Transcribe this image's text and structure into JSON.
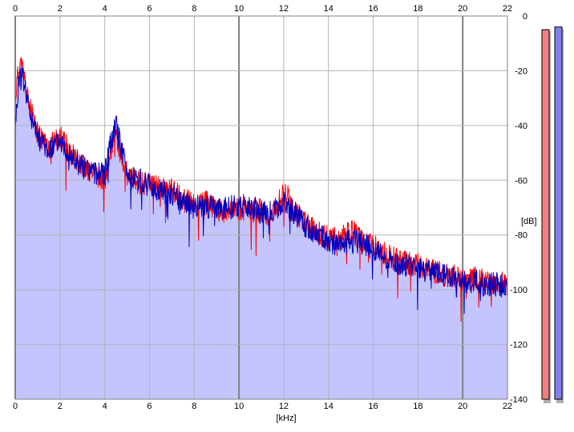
{
  "chart_data": {
    "type": "area",
    "xlabel": "[kHz]",
    "ylabel": "[dB]",
    "xlim": [
      0,
      22
    ],
    "ylim": [
      -140,
      0
    ],
    "x_ticks": [
      "0",
      "2",
      "4",
      "6",
      "8",
      "10",
      "12",
      "14",
      "16",
      "18",
      "20",
      "22"
    ],
    "y_ticks": [
      "0",
      "-20",
      "-40",
      "-60",
      "-80",
      "-100",
      "-120",
      "-140"
    ],
    "grid": true,
    "colors": {
      "fill": "#c4c4ff",
      "grid": "#b4b4b4",
      "grid_major": "#808080",
      "meter_left": "#f08080",
      "meter_right": "#8080f0"
    },
    "series": [
      {
        "color": "#ff0000",
        "x": [
          0.0,
          0.2,
          0.4,
          0.6,
          0.8,
          1.0,
          1.5,
          2.0,
          2.5,
          3.0,
          3.5,
          4.0,
          4.3,
          4.5,
          4.8,
          5.0,
          5.5,
          6.0,
          6.5,
          7.0,
          7.5,
          8.0,
          8.5,
          9.0,
          9.5,
          10.0,
          10.5,
          11.0,
          11.5,
          12.0,
          12.5,
          13.0,
          13.5,
          14.0,
          14.5,
          15.0,
          15.5,
          16.0,
          16.5,
          17.0,
          17.5,
          18.0,
          18.5,
          19.0,
          19.5,
          20.0,
          20.5,
          21.0,
          21.5,
          22.0
        ],
        "y": [
          -30,
          -16,
          -22,
          -32,
          -38,
          -43,
          -48,
          -44,
          -50,
          -54,
          -58,
          -60,
          -48,
          -44,
          -53,
          -58,
          -61,
          -61,
          -63,
          -63,
          -67,
          -69,
          -68,
          -71,
          -71,
          -70,
          -71,
          -71,
          -73,
          -63,
          -71,
          -76,
          -79,
          -81,
          -82,
          -78,
          -82,
          -84,
          -87,
          -89,
          -90,
          -91,
          -93,
          -94,
          -95,
          -96,
          -96,
          -97,
          -97,
          -98
        ]
      },
      {
        "color": "#0000c0",
        "x": [
          0.0,
          0.2,
          0.4,
          0.6,
          0.8,
          1.0,
          1.5,
          2.0,
          2.5,
          3.0,
          3.5,
          4.0,
          4.3,
          4.5,
          4.8,
          5.0,
          5.5,
          6.0,
          6.5,
          7.0,
          7.5,
          8.0,
          8.5,
          9.0,
          9.5,
          10.0,
          10.5,
          11.0,
          11.5,
          12.0,
          12.5,
          13.0,
          13.5,
          14.0,
          14.5,
          15.0,
          15.5,
          16.0,
          16.5,
          17.0,
          17.5,
          18.0,
          18.5,
          19.0,
          19.5,
          20.0,
          20.5,
          21.0,
          21.5,
          22.0
        ],
        "y": [
          -40,
          -20,
          -24,
          -33,
          -40,
          -44,
          -49,
          -45,
          -51,
          -55,
          -57,
          -58,
          -45,
          -40,
          -50,
          -57,
          -60,
          -62,
          -64,
          -65,
          -68,
          -70,
          -69,
          -71,
          -70,
          -69,
          -70,
          -71,
          -72,
          -68,
          -72,
          -77,
          -80,
          -82,
          -84,
          -82,
          -83,
          -85,
          -88,
          -90,
          -91,
          -92,
          -93,
          -95,
          -95,
          -97,
          -97,
          -98,
          -98,
          -99
        ]
      }
    ],
    "meters": [
      {
        "name": "left",
        "level_db": -5
      },
      {
        "name": "right",
        "level_db": -4
      }
    ]
  }
}
